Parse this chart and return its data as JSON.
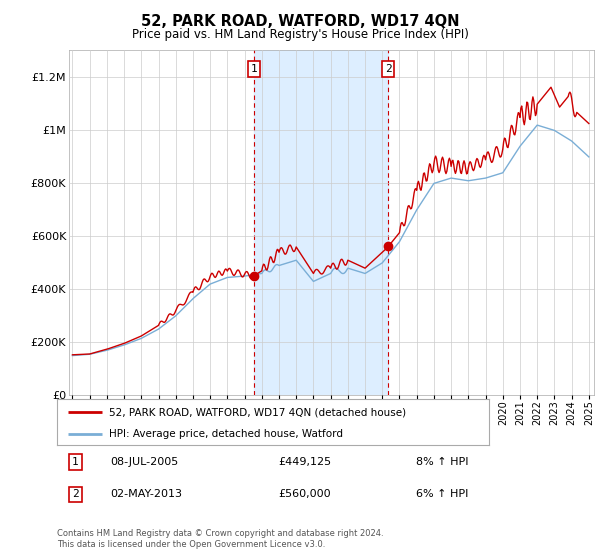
{
  "title": "52, PARK ROAD, WATFORD, WD17 4QN",
  "subtitle": "Price paid vs. HM Land Registry's House Price Index (HPI)",
  "ylim": [
    0,
    1300000
  ],
  "yticks": [
    0,
    200000,
    400000,
    600000,
    800000,
    1000000,
    1200000
  ],
  "ytick_labels": [
    "£0",
    "£200K",
    "£400K",
    "£600K",
    "£800K",
    "£1M",
    "£1.2M"
  ],
  "sale1_year": 2005.53,
  "sale1_price": 449125,
  "sale2_year": 2013.35,
  "sale2_price": 560000,
  "legend_line1": "52, PARK ROAD, WATFORD, WD17 4QN (detached house)",
  "legend_line2": "HPI: Average price, detached house, Watford",
  "annotation1_date": "08-JUL-2005",
  "annotation1_price": "£449,125",
  "annotation1_hpi": "8% ↑ HPI",
  "annotation2_date": "02-MAY-2013",
  "annotation2_price": "£560,000",
  "annotation2_hpi": "6% ↑ HPI",
  "footer": "Contains HM Land Registry data © Crown copyright and database right 2024.\nThis data is licensed under the Open Government Licence v3.0.",
  "red_color": "#cc0000",
  "blue_color": "#7aaed6",
  "shading_color": "#ddeeff",
  "background_color": "#ffffff"
}
